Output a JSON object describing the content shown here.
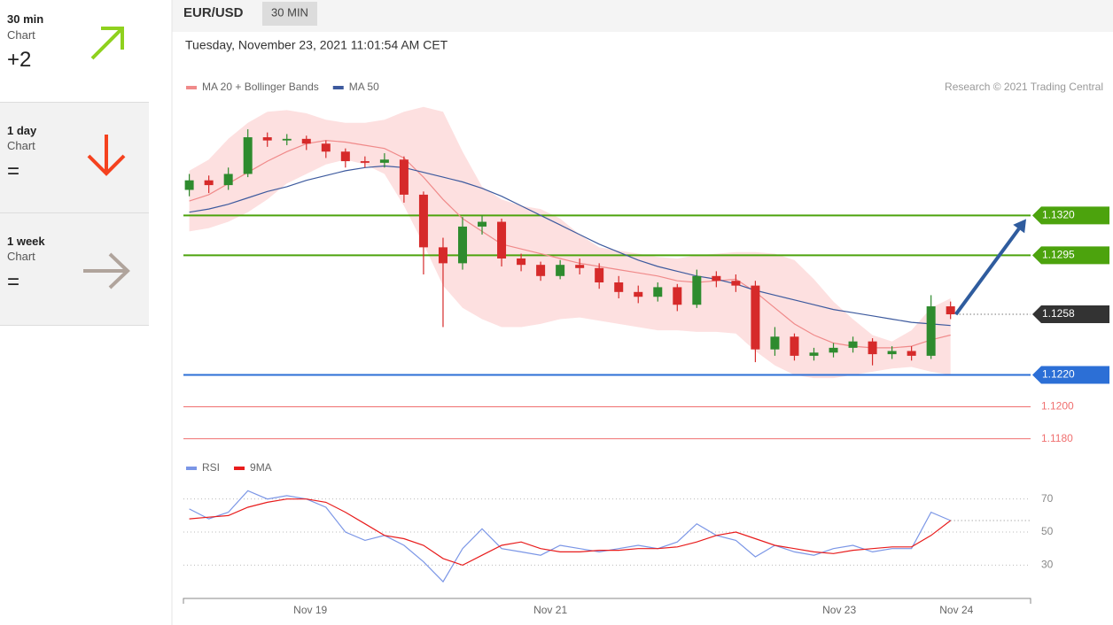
{
  "sidebar": [
    {
      "period": "30 min",
      "label": "Chart",
      "signal": "+2"
    },
    {
      "period": "1 day",
      "label": "Chart",
      "signal": "="
    },
    {
      "period": "1 week",
      "label": "Chart",
      "signal": "="
    }
  ],
  "header": {
    "symbol": "EUR/USD",
    "interval": "30 MIN",
    "timestamp": "Tuesday, November 23, 2021 11:01:54 AM CET"
  },
  "chart_data": [
    {
      "type": "candlestick",
      "source": "Research © 2021 Trading Central",
      "categories": [
        null,
        null,
        null,
        null,
        null,
        null,
        null,
        null,
        null,
        null,
        null,
        null,
        null,
        null,
        null,
        null,
        null,
        null,
        null,
        null,
        null,
        null,
        null,
        null,
        null,
        null,
        null,
        null,
        null,
        null,
        null,
        null,
        null,
        null,
        null,
        null,
        null,
        null,
        null,
        null
      ],
      "xlim": [
        -0.3,
        43.1
      ],
      "ylim": [
        1.1172,
        1.1394
      ],
      "up_color": "#2e8b2e",
      "down_color": "#d62a2a",
      "open": [
        1.1336,
        1.1342,
        1.1339,
        1.1346,
        1.1369,
        1.1367,
        1.1368,
        1.1365,
        1.136,
        1.1354,
        1.1353,
        1.1355,
        1.1333,
        1.13,
        1.129,
        1.1313,
        1.1316,
        1.1293,
        1.1289,
        1.1282,
        1.1289,
        1.1287,
        1.1278,
        1.1272,
        1.1269,
        1.1275,
        1.1264,
        1.1282,
        1.1279,
        1.1276,
        1.1236,
        1.1244,
        1.1232,
        1.1234,
        1.1237,
        1.1241,
        1.1233,
        1.1235,
        1.1232,
        1.1263
      ],
      "high": [
        1.1346,
        1.1345,
        1.135,
        1.1374,
        1.1372,
        1.1371,
        1.137,
        1.1367,
        1.1362,
        1.1357,
        1.1359,
        1.1357,
        1.1335,
        1.1306,
        1.1319,
        1.132,
        1.1318,
        1.1296,
        1.1291,
        1.1292,
        1.1293,
        1.129,
        1.1282,
        1.1276,
        1.1278,
        1.1277,
        1.1286,
        1.1285,
        1.1283,
        1.1279,
        1.125,
        1.1246,
        1.1237,
        1.124,
        1.1244,
        1.1243,
        1.1238,
        1.1238,
        1.127,
        1.1266
      ],
      "low": [
        1.1332,
        1.1334,
        1.1336,
        1.1344,
        1.1363,
        1.1364,
        1.1361,
        1.1356,
        1.135,
        1.135,
        1.135,
        1.1328,
        1.1283,
        1.125,
        1.1286,
        1.1308,
        1.1288,
        1.1285,
        1.1279,
        1.128,
        1.1283,
        1.1274,
        1.1268,
        1.1265,
        1.1266,
        1.126,
        1.1262,
        1.1275,
        1.1272,
        1.1228,
        1.1232,
        1.1229,
        1.1229,
        1.1231,
        1.1234,
        1.1226,
        1.123,
        1.1229,
        1.123,
        1.1255
      ],
      "close": [
        1.1342,
        1.1339,
        1.1346,
        1.1369,
        1.1367,
        1.1368,
        1.1365,
        1.136,
        1.1354,
        1.1353,
        1.1355,
        1.1333,
        1.13,
        1.129,
        1.1313,
        1.1316,
        1.1293,
        1.1289,
        1.1282,
        1.1289,
        1.1287,
        1.1278,
        1.1272,
        1.1269,
        1.1275,
        1.1264,
        1.1282,
        1.1279,
        1.1276,
        1.1236,
        1.1244,
        1.1232,
        1.1234,
        1.1237,
        1.1241,
        1.1233,
        1.1235,
        1.1232,
        1.1263,
        1.1258
      ],
      "series": [
        {
          "name": "MA 20 + Bollinger Bands",
          "color": "#f08a8a",
          "values": [
            1.1329,
            1.1333,
            1.134,
            1.1347,
            1.1354,
            1.136,
            1.1365,
            1.1367,
            1.1366,
            1.1364,
            1.1362,
            1.1356,
            1.1344,
            1.133,
            1.1318,
            1.131,
            1.1302,
            1.1299,
            1.1296,
            1.1293,
            1.129,
            1.1288,
            1.1286,
            1.1284,
            1.1282,
            1.1279,
            1.1278,
            1.1279,
            1.128,
            1.1272,
            1.1262,
            1.1252,
            1.1245,
            1.124,
            1.1238,
            1.1237,
            1.1237,
            1.1238,
            1.1242,
            1.1245
          ]
        },
        {
          "name": "MA 50",
          "color": "#3d5a9e",
          "values": [
            1.1322,
            1.1324,
            1.1327,
            1.1331,
            1.1335,
            1.1338,
            1.1342,
            1.1345,
            1.1348,
            1.135,
            1.1351,
            1.135,
            1.1347,
            1.1344,
            1.1341,
            1.1337,
            1.1332,
            1.1326,
            1.132,
            1.1314,
            1.1308,
            1.1302,
            1.1297,
            1.1292,
            1.1288,
            1.1285,
            1.1282,
            1.128,
            1.1277,
            1.1273,
            1.127,
            1.1267,
            1.1264,
            1.1261,
            1.1259,
            1.1257,
            1.1255,
            1.1253,
            1.1252,
            1.1251
          ]
        }
      ],
      "bands": {
        "color": "#fde0e0",
        "upper": [
          1.1348,
          1.1355,
          1.1368,
          1.1378,
          1.1385,
          1.1386,
          1.1384,
          1.138,
          1.1378,
          1.1378,
          1.138,
          1.1385,
          1.1388,
          1.1385,
          1.136,
          1.1338,
          1.133,
          1.1326,
          1.1324,
          1.1318,
          1.1308,
          1.13,
          1.1298,
          1.1296,
          1.1294,
          1.1293,
          1.1295,
          1.1296,
          1.1297,
          1.1297,
          1.1296,
          1.1292,
          1.128,
          1.1266,
          1.1255,
          1.1245,
          1.1241,
          1.1248,
          1.1262,
          1.1268
        ],
        "lower": [
          1.131,
          1.1312,
          1.1316,
          1.1322,
          1.133,
          1.134,
          1.1346,
          1.1352,
          1.1355,
          1.1352,
          1.1346,
          1.1326,
          1.1302,
          1.1276,
          1.1262,
          1.1255,
          1.125,
          1.125,
          1.1252,
          1.1255,
          1.1256,
          1.1254,
          1.1252,
          1.125,
          1.1248,
          1.1248,
          1.1247,
          1.1247,
          1.1246,
          1.1235,
          1.1226,
          1.122,
          1.1218,
          1.1218,
          1.122,
          1.1222,
          1.1224,
          1.1225,
          1.1222,
          1.122
        ]
      },
      "levels": [
        {
          "value": 1.132,
          "label": "1.1320",
          "color": "#4ca30d",
          "tag": true
        },
        {
          "value": 1.1295,
          "label": "1.1295",
          "color": "#4ca30d",
          "tag": true
        },
        {
          "value": 1.1258,
          "label": "1.1258",
          "color": "#333333",
          "tag": true,
          "dotted": true
        },
        {
          "value": 1.122,
          "label": "1.1220",
          "color": "#2c6fd6",
          "tag": true
        },
        {
          "value": 1.12,
          "label": "1.1200",
          "color": "#f07070",
          "tag": false
        },
        {
          "value": 1.118,
          "label": "1.1180",
          "color": "#f07070",
          "tag": false
        }
      ]
    },
    {
      "type": "line",
      "xlim": [
        -0.3,
        43.1
      ],
      "xticks": [
        {
          "value": 6.2,
          "label": "Nov 19"
        },
        {
          "value": 18.5,
          "label": "Nov 21"
        },
        {
          "value": 33.3,
          "label": "Nov 23"
        },
        {
          "value": 39.3,
          "label": "Nov 24"
        }
      ],
      "ylim": [
        12,
        80
      ],
      "yticks": [
        30,
        50,
        70
      ],
      "grid": true,
      "series": [
        {
          "name": "RSI",
          "color": "#7b96e6",
          "values": [
            64,
            58,
            62,
            75,
            70,
            72,
            70,
            65,
            50,
            45,
            48,
            42,
            32,
            20,
            40,
            52,
            40,
            38,
            36,
            42,
            40,
            38,
            40,
            42,
            40,
            44,
            55,
            48,
            45,
            35,
            42,
            38,
            36,
            40,
            42,
            38,
            40,
            40,
            62,
            57
          ]
        },
        {
          "name": "9MA",
          "color": "#e81c1c",
          "values": [
            58,
            59,
            60,
            65,
            68,
            70,
            70,
            68,
            62,
            55,
            48,
            46,
            42,
            34,
            30,
            36,
            42,
            44,
            40,
            38,
            38,
            39,
            39,
            40,
            40,
            41,
            44,
            48,
            50,
            46,
            42,
            40,
            38,
            37,
            39,
            40,
            41,
            41,
            48,
            57
          ]
        }
      ]
    }
  ]
}
